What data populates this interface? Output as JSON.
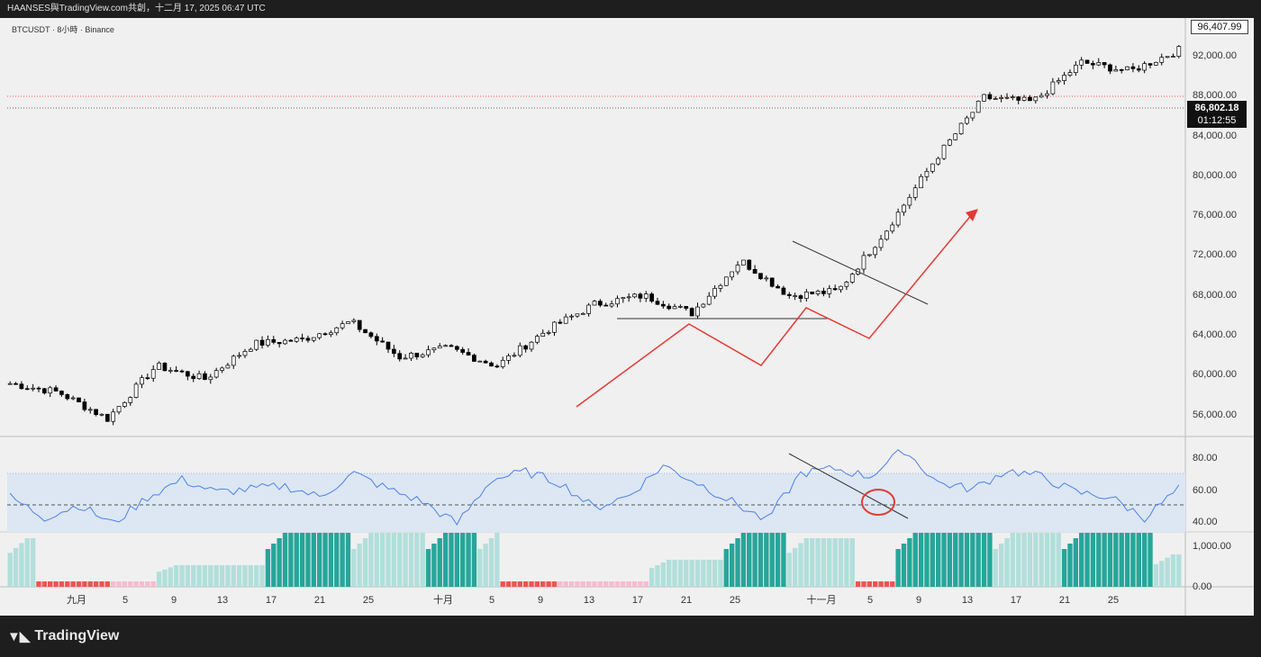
{
  "header": {
    "title": "HAANSES與TradingView.com共創，十二月 17, 2025 06:47 UTC"
  },
  "symbol": "BTCUSDT · 8小時 · Binance",
  "brand": {
    "name": "TradingView",
    "logo_icon": "tradingview-logo-icon"
  },
  "colors": {
    "up_candle": "#ffffff",
    "down_candle": "#000000",
    "rsi_line": "#4f80e6",
    "rsi_band": "#dce7f3",
    "red_annotation": "#e53935",
    "hist_dark": "#26a69a",
    "hist_light": "#b2dfdb",
    "hist_red": "#ef5350",
    "hist_pink": "#f8bbd0"
  },
  "price_axis": {
    "labels": [
      "92,000.00",
      "88,000.00",
      "84,000.00",
      "80,000.00",
      "76,000.00",
      "72,000.00",
      "68,000.00",
      "64,000.00",
      "60,000.00",
      "56,000.00"
    ],
    "current_price": "96,407.99",
    "marker_price": "86,802.18",
    "marker_timer": "01:12:55"
  },
  "rsi_axis": {
    "labels": [
      "80.00",
      "60.00",
      "40.00"
    ]
  },
  "hist_axis": {
    "labels": [
      "1,000.00",
      "0.00"
    ]
  },
  "time_axis": {
    "labels": [
      "九月",
      "5",
      "9",
      "13",
      "17",
      "21",
      "25",
      "十月",
      "5",
      "9",
      "13",
      "17",
      "21",
      "25",
      "十一月",
      "5",
      "9",
      "13",
      "17",
      "21",
      "25"
    ]
  },
  "chart_data": {
    "type": "candlestick",
    "symbol": "BTCUSDT",
    "interval": "8小時",
    "exchange": "Binance",
    "price_range": [
      53500,
      98000
    ],
    "approx_closes": [
      {
        "date": "九月 1",
        "close": 58500
      },
      {
        "date": "九月 5",
        "close": 57500
      },
      {
        "date": "九月 8",
        "close": 54500
      },
      {
        "date": "九月 13",
        "close": 60500
      },
      {
        "date": "九月 17",
        "close": 59000
      },
      {
        "date": "九月 21",
        "close": 63000
      },
      {
        "date": "九月 25",
        "close": 63500
      },
      {
        "date": "九月 28",
        "close": 65500
      },
      {
        "date": "十月 1",
        "close": 61500
      },
      {
        "date": "十月 5",
        "close": 62500
      },
      {
        "date": "十月 9",
        "close": 60500
      },
      {
        "date": "十月 13",
        "close": 64500
      },
      {
        "date": "十月 17",
        "close": 67500
      },
      {
        "date": "十月 21",
        "close": 68500
      },
      {
        "date": "十月 25",
        "close": 66500
      },
      {
        "date": "十月 28",
        "close": 72500
      },
      {
        "date": "十一月 1",
        "close": 68500
      },
      {
        "date": "十一月 5",
        "close": 69000
      },
      {
        "date": "十一月 8",
        "close": 76000
      },
      {
        "date": "十一月 11",
        "close": 84000
      },
      {
        "date": "十一月 13",
        "close": 91000
      },
      {
        "date": "十一月 17",
        "close": 90500
      },
      {
        "date": "十一月 21",
        "close": 95000
      },
      {
        "date": "十一月 25",
        "close": 94000
      },
      {
        "date": "十一月 28",
        "close": 96400
      }
    ],
    "rsi": {
      "levels": [
        80,
        60,
        40
      ],
      "values": [
        55,
        42,
        50,
        38,
        55,
        66,
        58,
        60,
        62,
        55,
        70,
        60,
        52,
        38,
        66,
        71,
        64,
        48,
        56,
        75,
        64,
        52,
        40,
        70,
        73,
        68,
        85,
        64,
        60,
        72,
        68,
        58,
        55,
        42,
        60
      ]
    },
    "histogram": {
      "range": [
        0,
        1000
      ]
    }
  }
}
